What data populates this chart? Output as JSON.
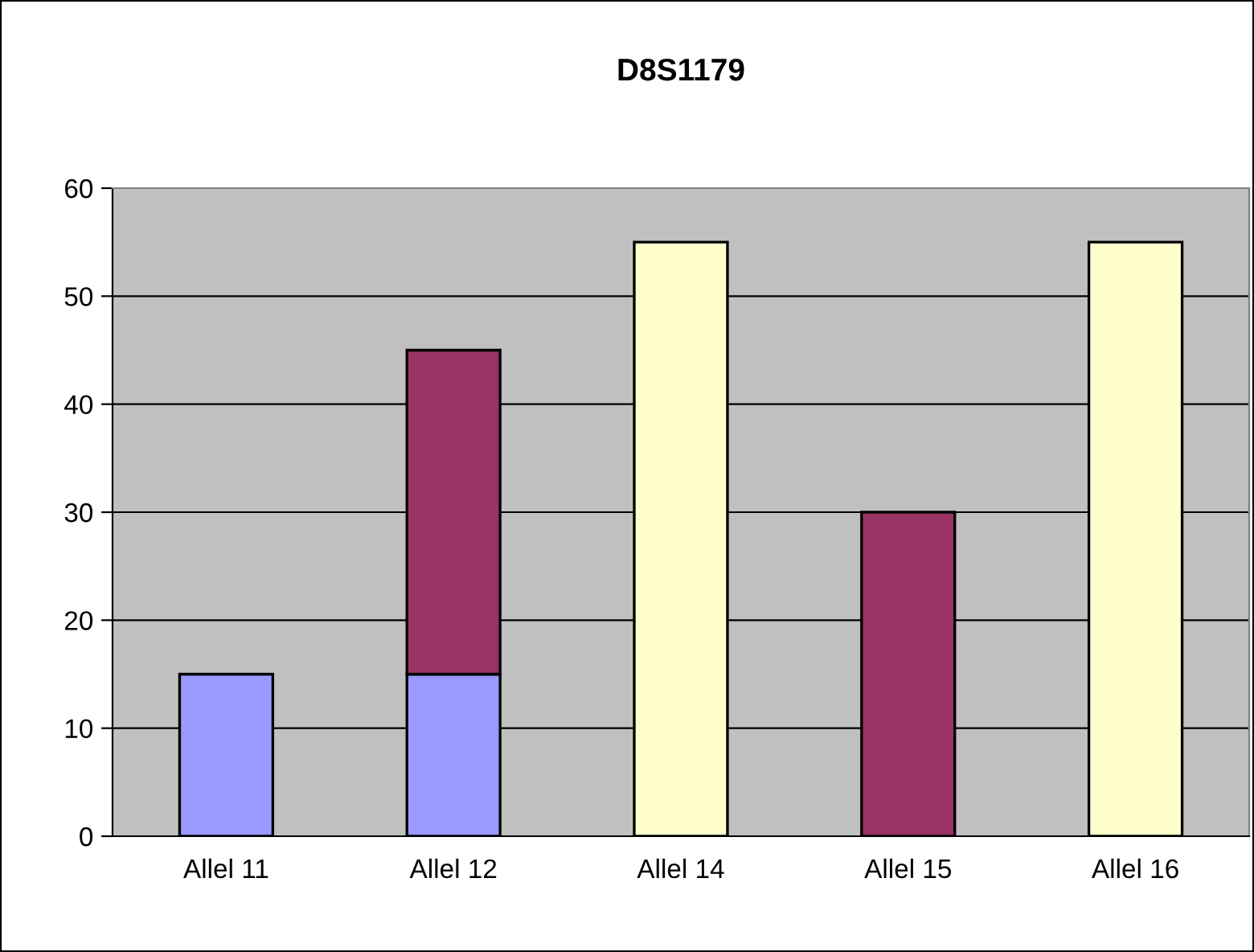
{
  "chart_data": {
    "type": "bar",
    "title": "D8S1179",
    "categories": [
      "Allel 11",
      "Allel 12",
      "Allel 14",
      "Allel 15",
      "Allel 16"
    ],
    "stacked": true,
    "series": [
      {
        "color": "#9999ff",
        "values": [
          15,
          15,
          null,
          null,
          null
        ]
      },
      {
        "color": "#993366",
        "values": [
          null,
          30,
          null,
          30,
          null
        ]
      },
      {
        "color": "#ffffcc",
        "values": [
          null,
          null,
          55,
          null,
          55
        ]
      }
    ],
    "ylim": [
      0,
      60
    ],
    "yticks": [
      0,
      10,
      20,
      30,
      40,
      50,
      60
    ],
    "grid": "y"
  }
}
